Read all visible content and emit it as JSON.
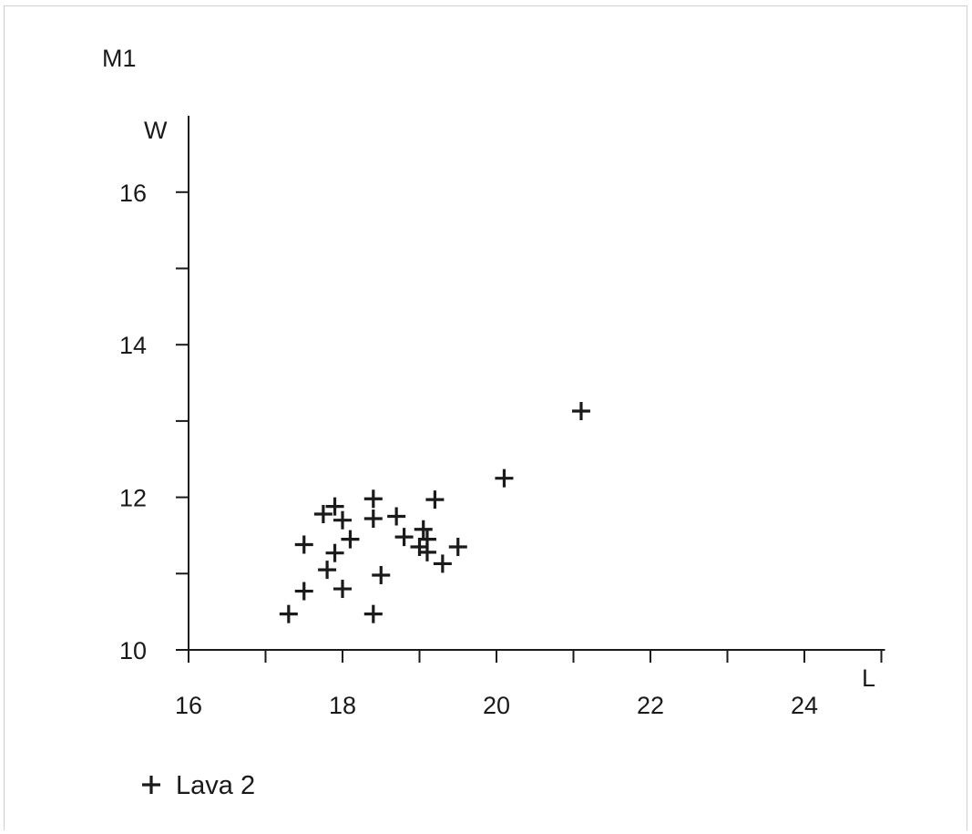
{
  "chart_data": {
    "type": "scatter",
    "title": "M1",
    "xlabel": "L",
    "ylabel": "W",
    "xlim": [
      16,
      25
    ],
    "ylim": [
      10,
      17
    ],
    "x_ticks_major": [
      16,
      18,
      20,
      22,
      24
    ],
    "x_ticks_minor": [
      17,
      19,
      21,
      23,
      25
    ],
    "y_ticks_major": [
      10,
      12,
      14,
      16
    ],
    "y_ticks_minor": [
      11,
      13,
      15
    ],
    "grid": false,
    "legend_position": "bottom-left",
    "series": [
      {
        "name": "Lava 2",
        "marker": "plus",
        "color": "#1a1a1a",
        "points": [
          {
            "x": 17.3,
            "y": 10.47
          },
          {
            "x": 17.5,
            "y": 10.77
          },
          {
            "x": 17.5,
            "y": 11.38
          },
          {
            "x": 17.75,
            "y": 11.78
          },
          {
            "x": 17.8,
            "y": 11.05
          },
          {
            "x": 17.9,
            "y": 11.27
          },
          {
            "x": 17.9,
            "y": 11.88
          },
          {
            "x": 18.0,
            "y": 10.8
          },
          {
            "x": 18.0,
            "y": 11.7
          },
          {
            "x": 18.1,
            "y": 11.45
          },
          {
            "x": 18.4,
            "y": 10.47
          },
          {
            "x": 18.4,
            "y": 11.72
          },
          {
            "x": 18.4,
            "y": 11.98
          },
          {
            "x": 18.5,
            "y": 10.98
          },
          {
            "x": 18.7,
            "y": 11.75
          },
          {
            "x": 18.8,
            "y": 11.48
          },
          {
            "x": 19.0,
            "y": 11.35
          },
          {
            "x": 19.05,
            "y": 11.58
          },
          {
            "x": 19.1,
            "y": 11.28
          },
          {
            "x": 19.1,
            "y": 11.45
          },
          {
            "x": 19.2,
            "y": 11.97
          },
          {
            "x": 19.3,
            "y": 11.13
          },
          {
            "x": 19.5,
            "y": 11.35
          },
          {
            "x": 20.1,
            "y": 12.25
          },
          {
            "x": 21.1,
            "y": 13.13
          }
        ]
      }
    ]
  }
}
